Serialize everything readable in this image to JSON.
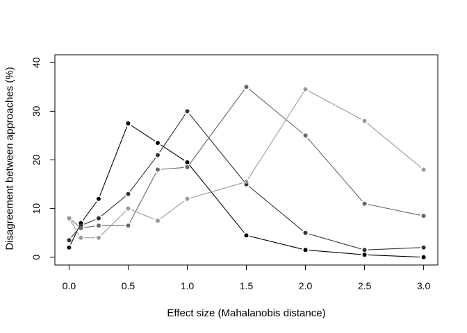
{
  "chart_data": {
    "type": "line",
    "title": "",
    "xlabel": "Effect size (Mahalanobis distance)",
    "ylabel": "Disagreement between approaches (%)",
    "xlim": [
      -0.12,
      3.12
    ],
    "ylim": [
      -1.6,
      41.6
    ],
    "x_ticks": [
      0.0,
      0.5,
      1.0,
      1.5,
      2.0,
      2.5,
      3.0
    ],
    "x_tick_labels": [
      "0.0",
      "0.5",
      "1.0",
      "1.5",
      "2.0",
      "2.5",
      "3.0"
    ],
    "y_ticks": [
      0,
      10,
      20,
      30,
      40
    ],
    "y_tick_labels": [
      "0",
      "10",
      "20",
      "30",
      "40"
    ],
    "grid": false,
    "x": [
      0.0,
      0.1,
      0.25,
      0.5,
      0.75,
      1.0,
      1.5,
      2.0,
      2.5,
      3.0
    ],
    "series": [
      {
        "color": "#000000",
        "values": [
          2.0,
          7.0,
          12.0,
          27.5,
          23.5,
          19.5,
          4.5,
          1.5,
          0.5,
          0.0
        ]
      },
      {
        "color": "#333333",
        "values": [
          3.5,
          6.5,
          8.0,
          13.0,
          21.0,
          30.0,
          15.0,
          5.0,
          1.5,
          2.0
        ]
      },
      {
        "color": "#666666",
        "values": [
          8.0,
          6.0,
          6.5,
          6.5,
          18.0,
          18.5,
          35.0,
          25.0,
          11.0,
          8.5
        ]
      },
      {
        "color": "#999999",
        "values": [
          8.0,
          4.0,
          4.0,
          10.0,
          7.5,
          12.0,
          15.5,
          34.5,
          28.0,
          18.0
        ]
      }
    ]
  }
}
